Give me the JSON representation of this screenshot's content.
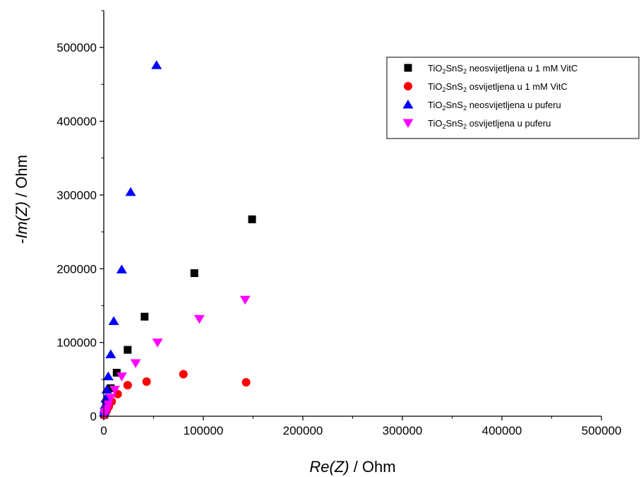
{
  "chart_data": {
    "type": "scatter",
    "xlabel": {
      "italic": "Re(Z)",
      "rest": " / Ohm"
    },
    "ylabel": {
      "prefix": "-",
      "italic": "Im(Z)",
      "rest": " / Ohm"
    },
    "xlim": [
      0,
      500000
    ],
    "ylim": [
      0,
      550000
    ],
    "x_ticks": [
      0,
      100000,
      200000,
      300000,
      400000,
      500000
    ],
    "y_ticks": [
      0,
      100000,
      200000,
      300000,
      400000,
      500000
    ],
    "legend_position": "top-right",
    "series": [
      {
        "name": "TiO2SnS2 neosvijetljena u 1 mM VitC",
        "legend_parts": [
          [
            "TiO",
            ""
          ],
          [
            "2",
            "sub"
          ],
          [
            "SnS",
            ""
          ],
          [
            "2",
            "sub"
          ],
          [
            " neosvijetljena u 1 mM VitC",
            ""
          ]
        ],
        "marker": "square",
        "color": "#000000",
        "points": [
          [
            149000,
            267000
          ],
          [
            91000,
            194000
          ],
          [
            41000,
            135000
          ],
          [
            24000,
            90000
          ],
          [
            13000,
            59000
          ],
          [
            7000,
            38000
          ],
          [
            4000,
            23000
          ],
          [
            2500,
            14000
          ],
          [
            1500,
            8000
          ],
          [
            800,
            4000
          ],
          [
            400,
            2000
          ]
        ]
      },
      {
        "name": "TiO2SnS2 osvijetljena u 1 mM VitC",
        "legend_parts": [
          [
            "TiO",
            ""
          ],
          [
            "2",
            "sub"
          ],
          [
            "SnS",
            ""
          ],
          [
            "2",
            "sub"
          ],
          [
            " osvijetljena u 1 mM VitC",
            ""
          ]
        ],
        "marker": "circle",
        "color": "#ff0000",
        "points": [
          [
            143000,
            46000
          ],
          [
            80000,
            57000
          ],
          [
            43000,
            47000
          ],
          [
            24000,
            42000
          ],
          [
            14000,
            30000
          ],
          [
            8000,
            20000
          ],
          [
            5000,
            13000
          ],
          [
            3000,
            8000
          ],
          [
            1800,
            5000
          ],
          [
            1000,
            3000
          ],
          [
            500,
            1500
          ]
        ]
      },
      {
        "name": "TiO2SnS2 neosvijetljena u puferu",
        "legend_parts": [
          [
            "TiO",
            ""
          ],
          [
            "2",
            "sub"
          ],
          [
            "SnS",
            ""
          ],
          [
            "2",
            "sub"
          ],
          [
            " neosvijetljena u puferu",
            ""
          ]
        ],
        "marker": "triangle-up",
        "color": "#0000ff",
        "points": [
          [
            53000,
            476000
          ],
          [
            27000,
            304000
          ],
          [
            18000,
            199000
          ],
          [
            10000,
            129000
          ],
          [
            7000,
            84000
          ],
          [
            4500,
            54000
          ],
          [
            3000,
            36000
          ],
          [
            2000,
            24000
          ],
          [
            1200,
            15000
          ],
          [
            700,
            9000
          ],
          [
            400,
            5000
          ]
        ]
      },
      {
        "name": "TiO2SnS2 osvijetljena u puferu",
        "legend_parts": [
          [
            "TiO",
            ""
          ],
          [
            "2",
            "sub"
          ],
          [
            "SnS",
            ""
          ],
          [
            "2",
            "sub"
          ],
          [
            " osvijetljena u puferu",
            ""
          ]
        ],
        "marker": "triangle-down",
        "color": "#ff00ff",
        "points": [
          [
            142000,
            158000
          ],
          [
            96000,
            132000
          ],
          [
            54000,
            100000
          ],
          [
            32000,
            72000
          ],
          [
            18000,
            54000
          ],
          [
            11000,
            36000
          ],
          [
            7000,
            25000
          ],
          [
            4500,
            16000
          ],
          [
            3000,
            10000
          ],
          [
            1800,
            6000
          ],
          [
            1000,
            3000
          ]
        ]
      }
    ]
  }
}
